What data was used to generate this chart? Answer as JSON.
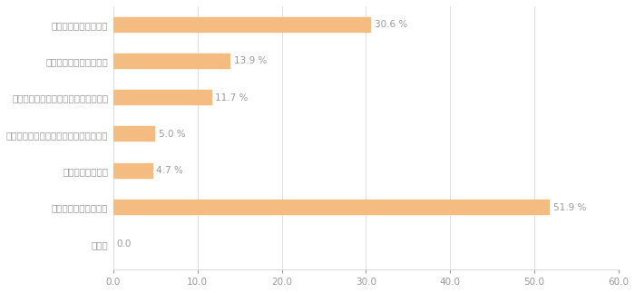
{
  "categories": [
    "排便と同時に水を流す",
    "人がいないトイレを探す",
    "トイレ内の便座除菌クリーナーで拭く",
    "においがなくなるまでトイレから出ない",
    "携帯消臭剤を使う",
    "特に対策はしていない",
    "その他"
  ],
  "values": [
    30.6,
    13.9,
    11.7,
    5.0,
    4.7,
    51.9,
    0.0
  ],
  "bar_color": "#F5BC82",
  "bar_edge_color": "#F5BC82",
  "label_color": "#999999",
  "value_color": "#999999",
  "xlim": [
    0,
    60
  ],
  "xticks": [
    0.0,
    10.0,
    20.0,
    30.0,
    40.0,
    50.0,
    60.0
  ],
  "bar_height": 0.42,
  "figsize": [
    7.0,
    3.23
  ],
  "dpi": 100,
  "grid_color": "#dddddd",
  "bg_color": "#ffffff",
  "font_size_labels": 7.5,
  "font_size_values": 7.5,
  "font_size_ticks": 7.5
}
